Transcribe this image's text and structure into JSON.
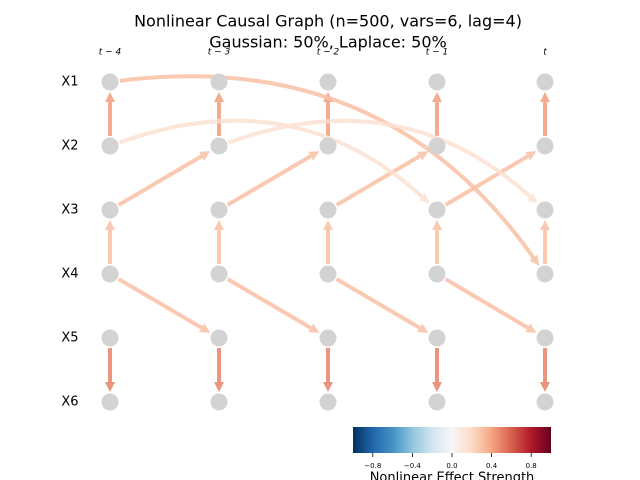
{
  "title": "Nonlinear Causal Graph (n=500, vars=6, lag=4)",
  "subtitle": "Gaussian: 50%, Laplace: 50%",
  "columns": [
    "t − 4",
    "t − 3",
    "t − 2",
    "t − 1",
    "t"
  ],
  "variables": [
    "X1",
    "X2",
    "X3",
    "X4",
    "X5",
    "X6"
  ],
  "edges": [
    {
      "source": "X2",
      "source_time": "t − 4",
      "target": "X1",
      "target_time": "t − 4",
      "strength": 0.42
    },
    {
      "source": "X2",
      "source_time": "t − 3",
      "target": "X1",
      "target_time": "t − 3",
      "strength": 0.42
    },
    {
      "source": "X2",
      "source_time": "t − 2",
      "target": "X1",
      "target_time": "t − 2",
      "strength": 0.42
    },
    {
      "source": "X2",
      "source_time": "t − 1",
      "target": "X1",
      "target_time": "t − 1",
      "strength": 0.42
    },
    {
      "source": "X2",
      "source_time": "t",
      "target": "X1",
      "target_time": "t",
      "strength": 0.42
    },
    {
      "source": "X4",
      "source_time": "t − 4",
      "target": "X3",
      "target_time": "t − 4",
      "strength": 0.3
    },
    {
      "source": "X4",
      "source_time": "t − 3",
      "target": "X3",
      "target_time": "t − 3",
      "strength": 0.3
    },
    {
      "source": "X4",
      "source_time": "t − 2",
      "target": "X3",
      "target_time": "t − 2",
      "strength": 0.3
    },
    {
      "source": "X4",
      "source_time": "t − 1",
      "target": "X3",
      "target_time": "t − 1",
      "strength": 0.3
    },
    {
      "source": "X4",
      "source_time": "t",
      "target": "X3",
      "target_time": "t",
      "strength": 0.3
    },
    {
      "source": "X5",
      "source_time": "t − 4",
      "target": "X6",
      "target_time": "t − 4",
      "strength": 0.5
    },
    {
      "source": "X5",
      "source_time": "t − 3",
      "target": "X6",
      "target_time": "t − 3",
      "strength": 0.5
    },
    {
      "source": "X5",
      "source_time": "t − 2",
      "target": "X6",
      "target_time": "t − 2",
      "strength": 0.5
    },
    {
      "source": "X5",
      "source_time": "t − 1",
      "target": "X6",
      "target_time": "t − 1",
      "strength": 0.5
    },
    {
      "source": "X5",
      "source_time": "t",
      "target": "X6",
      "target_time": "t",
      "strength": 0.5
    },
    {
      "source": "X3",
      "source_time": "t − 4",
      "target": "X2",
      "target_time": "t − 3",
      "strength": 0.3
    },
    {
      "source": "X3",
      "source_time": "t − 3",
      "target": "X2",
      "target_time": "t − 2",
      "strength": 0.3
    },
    {
      "source": "X3",
      "source_time": "t − 2",
      "target": "X2",
      "target_time": "t − 1",
      "strength": 0.3
    },
    {
      "source": "X3",
      "source_time": "t − 1",
      "target": "X2",
      "target_time": "t",
      "strength": 0.3
    },
    {
      "source": "X4",
      "source_time": "t − 4",
      "target": "X5",
      "target_time": "t − 3",
      "strength": 0.3
    },
    {
      "source": "X4",
      "source_time": "t − 3",
      "target": "X5",
      "target_time": "t − 2",
      "strength": 0.3
    },
    {
      "source": "X4",
      "source_time": "t − 2",
      "target": "X5",
      "target_time": "t − 1",
      "strength": 0.3
    },
    {
      "source": "X4",
      "source_time": "t − 1",
      "target": "X5",
      "target_time": "t",
      "strength": 0.3
    },
    {
      "source": "X1",
      "source_time": "t − 4",
      "target": "X4",
      "target_time": "t",
      "strength": 0.3
    },
    {
      "source": "X2",
      "source_time": "t − 4",
      "target": "X3",
      "target_time": "t − 1",
      "strength": 0.15
    },
    {
      "source": "X2",
      "source_time": "t − 3",
      "target": "X3",
      "target_time": "t",
      "strength": 0.15
    }
  ],
  "colorbar": {
    "label": "Nonlinear Effect Strength",
    "lim": [
      -1,
      1
    ],
    "ticks": [
      {
        "value": -0.8,
        "label": "−0.8"
      },
      {
        "value": -0.4,
        "label": "−0.4"
      },
      {
        "value": 0,
        "label": "0.0"
      },
      0.4,
      0.8
    ]
  }
}
